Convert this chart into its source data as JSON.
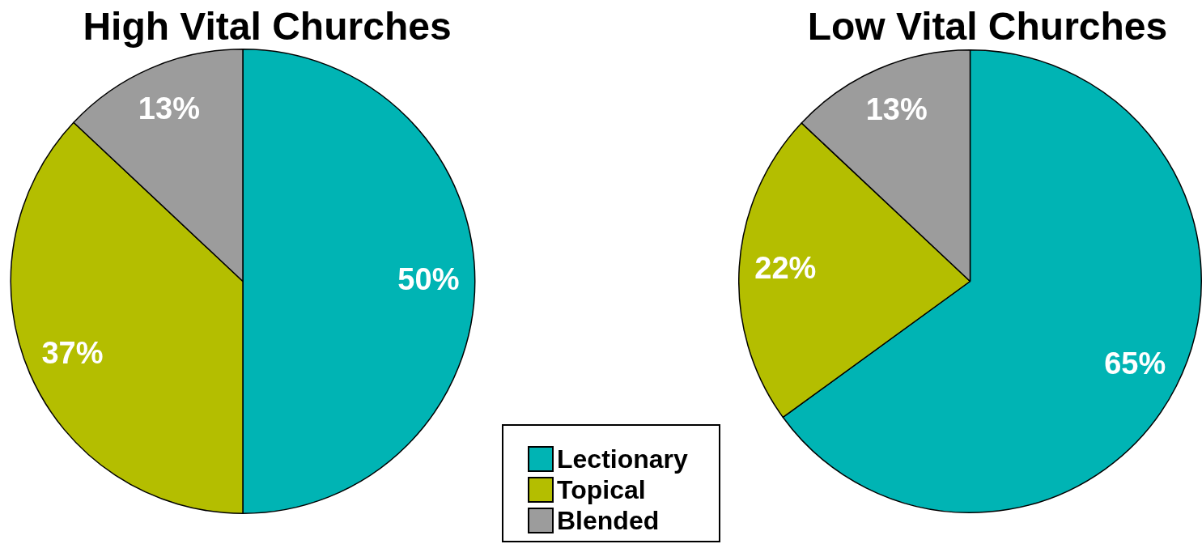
{
  "chart_data": [
    {
      "type": "pie",
      "title": "High Vital Churches",
      "categories": [
        "Lectionary",
        "Topical",
        "Blended"
      ],
      "values": [
        50,
        37,
        13
      ],
      "colors": [
        "#00b4b4",
        "#b4be00",
        "#9c9c9c"
      ],
      "value_labels": [
        "50%",
        "37%",
        "13%"
      ],
      "legend": "bottom right"
    },
    {
      "type": "pie",
      "title": "Low Vital Churches",
      "categories": [
        null,
        null,
        null
      ],
      "values": [
        65,
        22,
        13
      ],
      "colors": [
        "#00b4b4",
        "#b4be00",
        "#9c9c9c"
      ],
      "value_labels": [
        "65%",
        "22%",
        "13%"
      ]
    }
  ]
}
